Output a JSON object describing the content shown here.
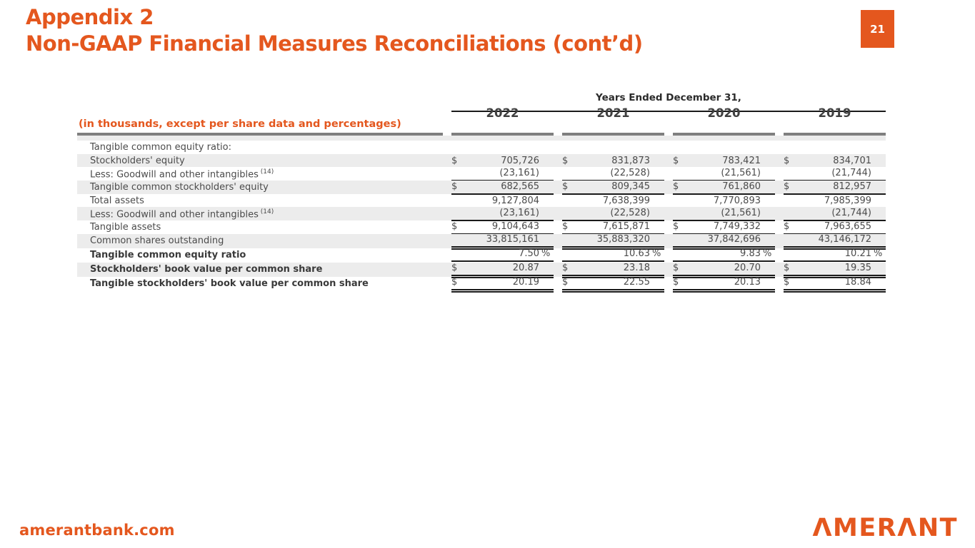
{
  "header": {
    "title_line1": "Appendix 2",
    "title_line2": "Non-GAAP Financial Measures Reconciliations (cont’d)",
    "page_number": "21"
  },
  "table": {
    "units_label": "(in thousands, except per share data and percentages)",
    "years_header": "Years Ended December 31,",
    "years": [
      "2022",
      "2021",
      "2020",
      "2019"
    ],
    "rows": [
      {
        "label": "Tangible common equity ratio:",
        "shaded": false,
        "bold": false,
        "rule": "none",
        "cells": [
          null,
          null,
          null,
          null
        ]
      },
      {
        "label": "Stockholders' equity",
        "shaded": true,
        "bold": false,
        "rule": "none",
        "cells": [
          {
            "d": "$",
            "v": "705,726"
          },
          {
            "d": "$",
            "v": "831,873"
          },
          {
            "d": "$",
            "v": "783,421"
          },
          {
            "d": "$",
            "v": "834,701"
          }
        ]
      },
      {
        "label": "Less: Goodwill and other intangibles",
        "sup": "(14)",
        "shaded": false,
        "bold": false,
        "rule": "single",
        "cells": [
          {
            "v": "(23,161)"
          },
          {
            "v": "(22,528)"
          },
          {
            "v": "(21,561)"
          },
          {
            "v": "(21,744)"
          }
        ]
      },
      {
        "label": "Tangible common stockholders' equity",
        "shaded": true,
        "bold": false,
        "rule": "single",
        "cells": [
          {
            "d": "$",
            "v": "682,565"
          },
          {
            "d": "$",
            "v": "809,345"
          },
          {
            "d": "$",
            "v": "761,860"
          },
          {
            "d": "$",
            "v": "812,957"
          }
        ]
      },
      {
        "label": "Total assets",
        "shaded": false,
        "bold": false,
        "rule": "none",
        "cells": [
          {
            "v": "9,127,804"
          },
          {
            "v": "7,638,399"
          },
          {
            "v": "7,770,893"
          },
          {
            "v": "7,985,399"
          }
        ]
      },
      {
        "label": "Less: Goodwill and other intangibles",
        "sup": "(14)",
        "shaded": true,
        "bold": false,
        "rule": "single",
        "cells": [
          {
            "v": "(23,161)"
          },
          {
            "v": "(22,528)"
          },
          {
            "v": "(21,561)"
          },
          {
            "v": "(21,744)"
          }
        ]
      },
      {
        "label": "Tangible assets",
        "shaded": false,
        "bold": false,
        "rule": "single",
        "cells": [
          {
            "d": "$",
            "v": "9,104,643"
          },
          {
            "d": "$",
            "v": "7,615,871"
          },
          {
            "d": "$",
            "v": "7,749,332"
          },
          {
            "d": "$",
            "v": "7,963,655"
          }
        ]
      },
      {
        "label": "Common shares outstanding",
        "shaded": true,
        "bold": false,
        "rule": "double",
        "cells": [
          {
            "v": "33,815,161"
          },
          {
            "v": "35,883,320"
          },
          {
            "v": "37,842,696"
          },
          {
            "v": "43,146,172"
          }
        ]
      },
      {
        "label": "Tangible common equity ratio",
        "shaded": false,
        "bold": true,
        "rule": "double",
        "cells": [
          {
            "v": "7.50",
            "p": "%"
          },
          {
            "v": "10.63",
            "p": "%"
          },
          {
            "v": "9.83",
            "p": "%"
          },
          {
            "v": "10.21",
            "p": "%"
          }
        ]
      },
      {
        "label": "Stockholders' book value per common share",
        "shaded": true,
        "bold": true,
        "rule": "double",
        "cells": [
          {
            "d": "$",
            "v": "20.87"
          },
          {
            "d": "$",
            "v": "23.18"
          },
          {
            "d": "$",
            "v": "20.70"
          },
          {
            "d": "$",
            "v": "19.35"
          }
        ]
      },
      {
        "label": "Tangible stockholders' book value per common share",
        "shaded": false,
        "bold": true,
        "rule": "double",
        "cells": [
          {
            "d": "$",
            "v": "20.19"
          },
          {
            "d": "$",
            "v": "22.55"
          },
          {
            "d": "$",
            "v": "20.13"
          },
          {
            "d": "$",
            "v": "18.84"
          }
        ]
      }
    ]
  },
  "footer": {
    "website": "amerantbank.com",
    "logo_text": "AMERANT"
  },
  "colors": {
    "accent_orange": "#E4571E",
    "stripe_gray": "#ECECEC",
    "bar_gray": "#7F7F7F",
    "rule_black": "#1A1A1A"
  }
}
